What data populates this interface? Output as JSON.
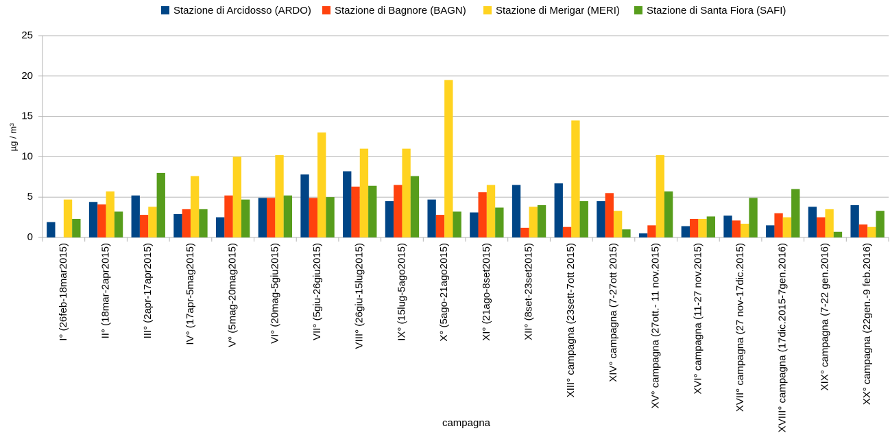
{
  "chart_data": {
    "type": "bar",
    "y_label": "µg / m³",
    "x_label": "campagna",
    "categories": [
      "I° (26feb-18mar2015)",
      "II° (18mar-2apr2015)",
      "III° (2apr-17apr2015)",
      "IV° (17apr-5mag2015)",
      "V° (5mag-20mag2015)",
      "VI° (20mag-5giu2015)",
      "VII° (5giu-26giu2015)",
      "VIII° (26giu-15lug2015)",
      "IX° (15lug-5ago2015)",
      "X° (5ago-21ago2015)",
      "XI° (21ago-8set2015)",
      "XII° (8set-23set2015)",
      "XIII° campagna (23sett-7ott 2015)",
      "XIV° campagna (7-27ott 2015)",
      "XV° campagna (27ott.- 11 nov.2015)",
      "XVI° campagna (11-27 nov.2015)",
      "XVII° campagna (27 nov-17dic.2015)",
      "XVIII° campagna (17dic.2015-7gen.2016)",
      "XIX° campagna (7-22 gen.2016)",
      "XX° campagna (22gen.-9 feb.2016)"
    ],
    "series": [
      {
        "name": "Stazione di Arcidosso (ARDO)",
        "color": "#004586",
        "values": [
          1.9,
          4.4,
          5.2,
          2.9,
          2.5,
          4.9,
          7.8,
          8.2,
          4.5,
          4.7,
          3.1,
          6.5,
          6.7,
          4.5,
          0.5,
          1.4,
          2.7,
          1.5,
          3.8,
          4.0
        ]
      },
      {
        "name": "Stazione di Bagnore (BAGN)",
        "color": "#ff420e",
        "values": [
          null,
          4.1,
          2.8,
          3.5,
          5.2,
          4.9,
          4.9,
          6.3,
          6.5,
          2.8,
          5.6,
          1.2,
          1.3,
          5.5,
          1.5,
          2.3,
          2.1,
          3.0,
          2.5,
          1.6
        ]
      },
      {
        "name": "Stazione di Merigar (MERI)",
        "color": "#ffd320",
        "values": [
          4.7,
          5.7,
          3.8,
          7.6,
          10.0,
          10.2,
          13.0,
          11.0,
          11.0,
          19.5,
          6.5,
          3.8,
          14.5,
          3.3,
          10.2,
          2.3,
          1.7,
          2.5,
          3.5,
          1.3
        ]
      },
      {
        "name": "Stazione di Santa Fiora (SAFI)",
        "color": "#579d1c",
        "values": [
          2.3,
          3.2,
          8.0,
          3.5,
          4.7,
          5.2,
          5.0,
          6.4,
          7.6,
          3.2,
          3.7,
          4.0,
          4.5,
          1.0,
          5.7,
          2.6,
          4.9,
          6.0,
          0.7,
          3.3
        ]
      }
    ],
    "ylim": [
      0,
      25
    ],
    "yticks": [
      0,
      5,
      10,
      15,
      20,
      25
    ],
    "grid": true,
    "legend": "top"
  }
}
